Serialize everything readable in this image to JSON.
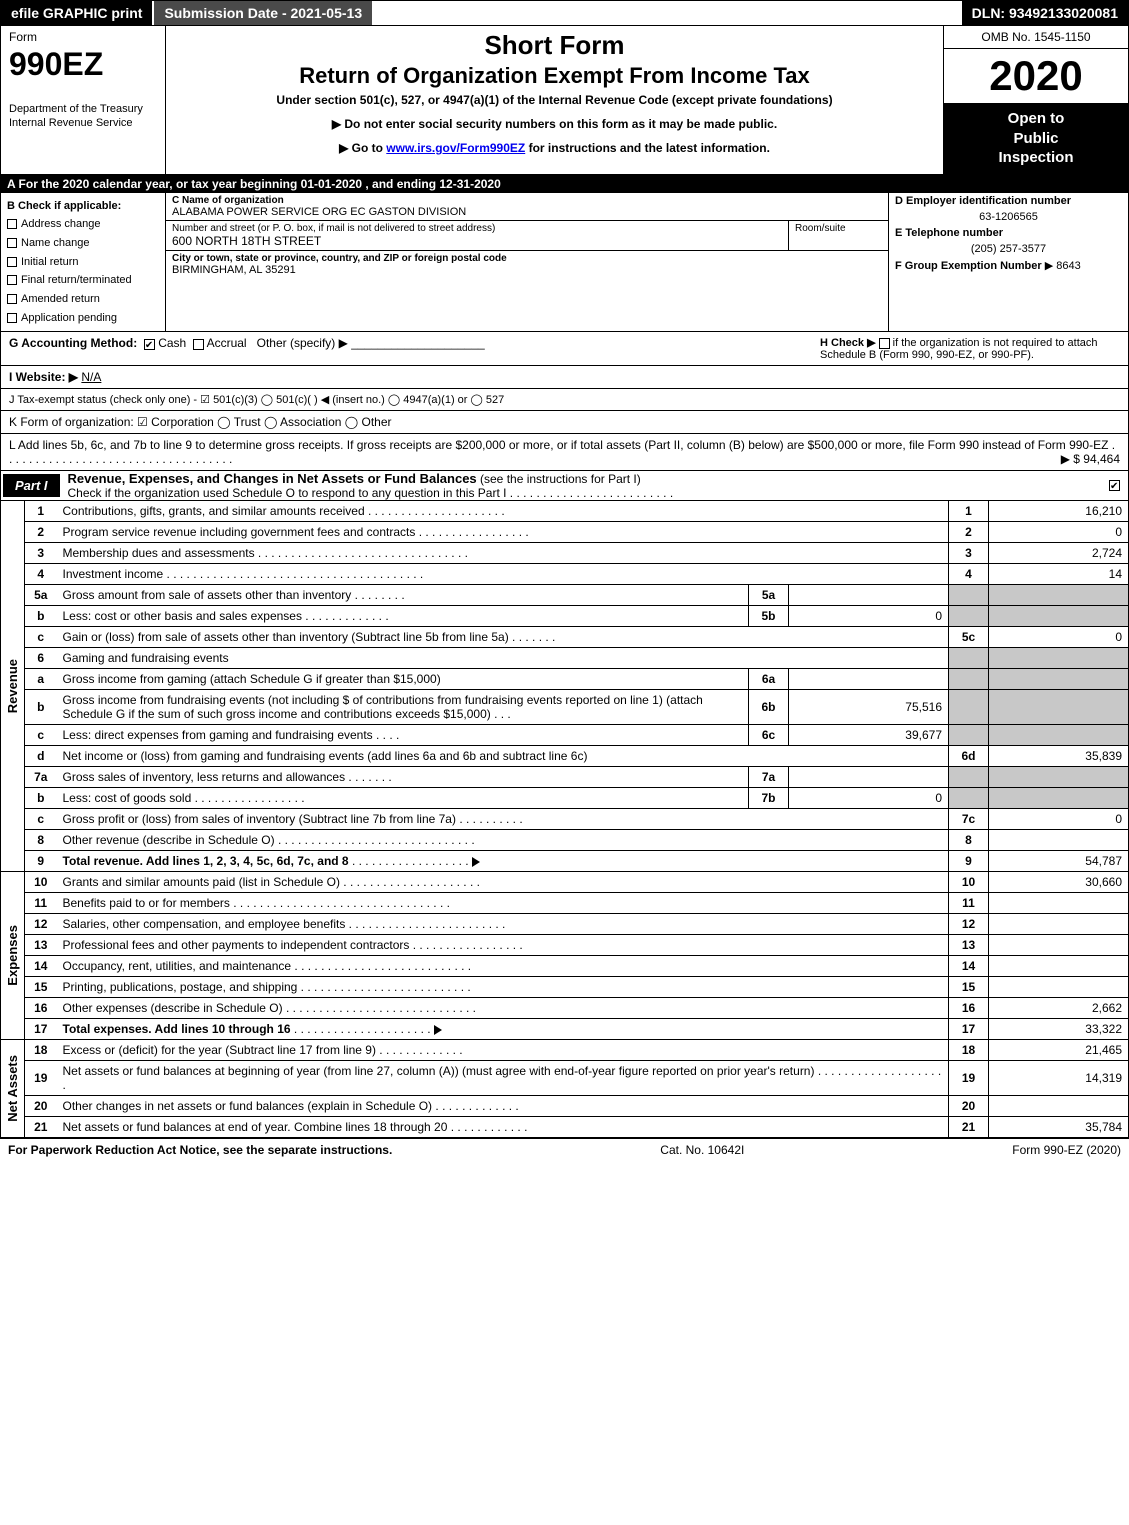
{
  "topbar": {
    "efile": "efile GRAPHIC print",
    "submission": "Submission Date - 2021-05-13",
    "dln": "DLN: 93492133020081"
  },
  "header": {
    "form_label": "Form",
    "form_no": "990EZ",
    "dept1": "Department of the Treasury",
    "dept2": "Internal Revenue Service",
    "title1": "Short Form",
    "title2": "Return of Organization Exempt From Income Tax",
    "subtitle": "Under section 501(c), 527, or 4947(a)(1) of the Internal Revenue Code (except private foundations)",
    "note1": "▶ Do not enter social security numbers on this form as it may be made public.",
    "note2_pre": "▶ Go to ",
    "note2_link": "www.irs.gov/Form990EZ",
    "note2_post": " for instructions and the latest information.",
    "omb": "OMB No. 1545-1150",
    "year": "2020",
    "inspect1": "Open to",
    "inspect2": "Public",
    "inspect3": "Inspection"
  },
  "row_a": "A For the 2020 calendar year, or tax year beginning 01-01-2020 , and ending 12-31-2020",
  "col_b": {
    "title": "B  Check if applicable:",
    "opts": [
      "Address change",
      "Name change",
      "Initial return",
      "Final return/terminated",
      "Amended return",
      "Application pending"
    ]
  },
  "col_c": {
    "name_label": "C Name of organization",
    "name": "ALABAMA POWER SERVICE ORG EC GASTON DIVISION",
    "street_label": "Number and street (or P. O. box, if mail is not delivered to street address)",
    "room_label": "Room/suite",
    "street": "600 NORTH 18TH STREET",
    "city_label": "City or town, state or province, country, and ZIP or foreign postal code",
    "city": "BIRMINGHAM, AL  35291"
  },
  "col_d": {
    "ein_label": "D Employer identification number",
    "ein": "63-1206565",
    "tel_label": "E Telephone number",
    "tel": "(205) 257-3577",
    "grp_label": "F Group Exemption Number",
    "grp": "▶ 8643"
  },
  "row_g": {
    "label": "G Accounting Method:",
    "cash": "Cash",
    "accrual": "Accrual",
    "other": "Other (specify) ▶",
    "h_label": "H  Check ▶",
    "h_text": "if the organization is not required to attach Schedule B (Form 990, 990-EZ, or 990-PF)."
  },
  "row_i": {
    "label": "I Website: ▶",
    "val": "N/A"
  },
  "row_j": "J Tax-exempt status (check only one) -  ☑ 501(c)(3)  ◯ 501(c)(  ) ◀ (insert no.)  ◯ 4947(a)(1) or  ◯ 527",
  "row_k": "K Form of organization:   ☑ Corporation   ◯ Trust   ◯ Association   ◯ Other",
  "row_l": {
    "text": "L Add lines 5b, 6c, and 7b to line 9 to determine gross receipts. If gross receipts are $200,000 or more, or if total assets (Part II, column (B) below) are $500,000 or more, file Form 990 instead of Form 990-EZ",
    "val": "▶ $ 94,464"
  },
  "part1": {
    "label": "Part I",
    "title": "Revenue, Expenses, and Changes in Net Assets or Fund Balances",
    "note": "(see the instructions for Part I)",
    "check_note": "Check if the organization used Schedule O to respond to any question in this Part I"
  },
  "sections": {
    "revenue": "Revenue",
    "expenses": "Expenses",
    "netassets": "Net Assets"
  },
  "lines": {
    "l1": {
      "n": "1",
      "d": "Contributions, gifts, grants, and similar amounts received",
      "rn": "1",
      "rv": "16,210"
    },
    "l2": {
      "n": "2",
      "d": "Program service revenue including government fees and contracts",
      "rn": "2",
      "rv": "0"
    },
    "l3": {
      "n": "3",
      "d": "Membership dues and assessments",
      "rn": "3",
      "rv": "2,724"
    },
    "l4": {
      "n": "4",
      "d": "Investment income",
      "rn": "4",
      "rv": "14"
    },
    "l5a": {
      "n": "5a",
      "d": "Gross amount from sale of assets other than inventory",
      "sn": "5a",
      "sv": ""
    },
    "l5b": {
      "n": "b",
      "d": "Less: cost or other basis and sales expenses",
      "sn": "5b",
      "sv": "0"
    },
    "l5c": {
      "n": "c",
      "d": "Gain or (loss) from sale of assets other than inventory (Subtract line 5b from line 5a)",
      "rn": "5c",
      "rv": "0"
    },
    "l6": {
      "n": "6",
      "d": "Gaming and fundraising events"
    },
    "l6a": {
      "n": "a",
      "d": "Gross income from gaming (attach Schedule G if greater than $15,000)",
      "sn": "6a",
      "sv": ""
    },
    "l6b": {
      "n": "b",
      "d": "Gross income from fundraising events (not including $                     of contributions from fundraising events reported on line 1) (attach Schedule G if the sum of such gross income and contributions exceeds $15,000)",
      "sn": "6b",
      "sv": "75,516"
    },
    "l6c": {
      "n": "c",
      "d": "Less: direct expenses from gaming and fundraising events",
      "sn": "6c",
      "sv": "39,677"
    },
    "l6d": {
      "n": "d",
      "d": "Net income or (loss) from gaming and fundraising events (add lines 6a and 6b and subtract line 6c)",
      "rn": "6d",
      "rv": "35,839"
    },
    "l7a": {
      "n": "7a",
      "d": "Gross sales of inventory, less returns and allowances",
      "sn": "7a",
      "sv": ""
    },
    "l7b": {
      "n": "b",
      "d": "Less: cost of goods sold",
      "sn": "7b",
      "sv": "0"
    },
    "l7c": {
      "n": "c",
      "d": "Gross profit or (loss) from sales of inventory (Subtract line 7b from line 7a)",
      "rn": "7c",
      "rv": "0"
    },
    "l8": {
      "n": "8",
      "d": "Other revenue (describe in Schedule O)",
      "rn": "8",
      "rv": ""
    },
    "l9": {
      "n": "9",
      "d": "Total revenue. Add lines 1, 2, 3, 4, 5c, 6d, 7c, and 8",
      "rn": "9",
      "rv": "54,787"
    },
    "l10": {
      "n": "10",
      "d": "Grants and similar amounts paid (list in Schedule O)",
      "rn": "10",
      "rv": "30,660"
    },
    "l11": {
      "n": "11",
      "d": "Benefits paid to or for members",
      "rn": "11",
      "rv": ""
    },
    "l12": {
      "n": "12",
      "d": "Salaries, other compensation, and employee benefits",
      "rn": "12",
      "rv": ""
    },
    "l13": {
      "n": "13",
      "d": "Professional fees and other payments to independent contractors",
      "rn": "13",
      "rv": ""
    },
    "l14": {
      "n": "14",
      "d": "Occupancy, rent, utilities, and maintenance",
      "rn": "14",
      "rv": ""
    },
    "l15": {
      "n": "15",
      "d": "Printing, publications, postage, and shipping",
      "rn": "15",
      "rv": ""
    },
    "l16": {
      "n": "16",
      "d": "Other expenses (describe in Schedule O)",
      "rn": "16",
      "rv": "2,662"
    },
    "l17": {
      "n": "17",
      "d": "Total expenses. Add lines 10 through 16",
      "rn": "17",
      "rv": "33,322"
    },
    "l18": {
      "n": "18",
      "d": "Excess or (deficit) for the year (Subtract line 17 from line 9)",
      "rn": "18",
      "rv": "21,465"
    },
    "l19": {
      "n": "19",
      "d": "Net assets or fund balances at beginning of year (from line 27, column (A)) (must agree with end-of-year figure reported on prior year's return)",
      "rn": "19",
      "rv": "14,319"
    },
    "l20": {
      "n": "20",
      "d": "Other changes in net assets or fund balances (explain in Schedule O)",
      "rn": "20",
      "rv": ""
    },
    "l21": {
      "n": "21",
      "d": "Net assets or fund balances at end of year. Combine lines 18 through 20",
      "rn": "21",
      "rv": "35,784"
    }
  },
  "footer": {
    "l": "For Paperwork Reduction Act Notice, see the separate instructions.",
    "c": "Cat. No. 10642I",
    "r": "Form 990-EZ (2020)"
  }
}
